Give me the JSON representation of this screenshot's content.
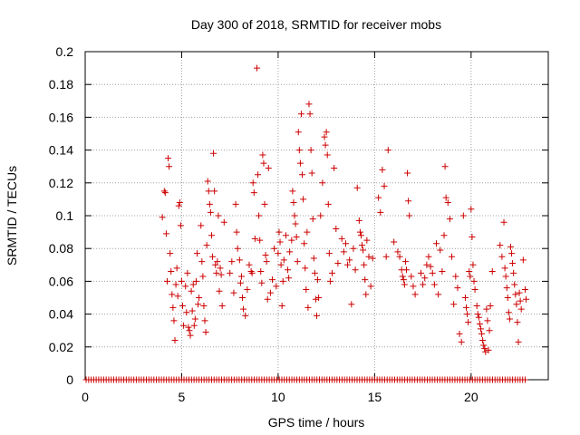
{
  "chart_data": {
    "type": "scatter",
    "title": "Day 300 of 2018, SRMTID for receiver mobs",
    "xlabel": "GPS time / hours",
    "ylabel": "SRMTID / TECUs",
    "xlim": [
      0,
      24
    ],
    "ylim": [
      0,
      0.2
    ],
    "xticks": [
      0,
      5,
      10,
      15,
      20
    ],
    "xtick_labels": [
      "0",
      "5",
      "10",
      "15",
      "20"
    ],
    "yticks": [
      0,
      0.02,
      0.04,
      0.06,
      0.08,
      0.1,
      0.12,
      0.14,
      0.16,
      0.18,
      0.2
    ],
    "ytick_labels": [
      "0",
      "0.02",
      "0.04",
      "0.06",
      "0.08",
      "0.1",
      "0.12",
      "0.14",
      "0.16",
      "0.18",
      "0.2"
    ],
    "grid": true,
    "marker": "+",
    "color": "#cc0000",
    "series": [
      {
        "name": "SRMTID",
        "points": [
          [
            4.0,
            0.099
          ],
          [
            4.1,
            0.115
          ],
          [
            4.15,
            0.114
          ],
          [
            4.2,
            0.089
          ],
          [
            4.25,
            0.06
          ],
          [
            4.3,
            0.135
          ],
          [
            4.35,
            0.13
          ],
          [
            4.4,
            0.077
          ],
          [
            4.45,
            0.066
          ],
          [
            4.5,
            0.052
          ],
          [
            4.55,
            0.044
          ],
          [
            4.6,
            0.036
          ],
          [
            4.65,
            0.024
          ],
          [
            4.7,
            0.058
          ],
          [
            4.75,
            0.068
          ],
          [
            4.8,
            0.051
          ],
          [
            4.85,
            0.106
          ],
          [
            4.9,
            0.108
          ],
          [
            4.95,
            0.094
          ],
          [
            5.0,
            0.06
          ],
          [
            5.05,
            0.045
          ],
          [
            5.1,
            0.033
          ],
          [
            5.2,
            0.057
          ],
          [
            5.25,
            0.041
          ],
          [
            5.3,
            0.065
          ],
          [
            5.35,
            0.032
          ],
          [
            5.4,
            0.03
          ],
          [
            5.45,
            0.027
          ],
          [
            5.5,
            0.054
          ],
          [
            5.55,
            0.042
          ],
          [
            5.6,
            0.058
          ],
          [
            5.65,
            0.033
          ],
          [
            5.7,
            0.037
          ],
          [
            5.75,
            0.06
          ],
          [
            5.8,
            0.077
          ],
          [
            5.85,
            0.046
          ],
          [
            5.9,
            0.05
          ],
          [
            6.0,
            0.094
          ],
          [
            6.05,
            0.072
          ],
          [
            6.1,
            0.063
          ],
          [
            6.15,
            0.045
          ],
          [
            6.2,
            0.036
          ],
          [
            6.25,
            0.029
          ],
          [
            6.3,
            0.082
          ],
          [
            6.35,
            0.121
          ],
          [
            6.4,
            0.115
          ],
          [
            6.45,
            0.107
          ],
          [
            6.5,
            0.102
          ],
          [
            6.55,
            0.088
          ],
          [
            6.6,
            0.075
          ],
          [
            6.65,
            0.138
          ],
          [
            6.7,
            0.115
          ],
          [
            6.75,
            0.07
          ],
          [
            6.8,
            0.065
          ],
          [
            6.85,
            0.072
          ],
          [
            6.9,
            0.1
          ],
          [
            6.95,
            0.054
          ],
          [
            7.0,
            0.068
          ],
          [
            7.05,
            0.064
          ],
          [
            7.1,
            0.045
          ],
          [
            7.2,
            0.096
          ],
          [
            7.5,
            0.065
          ],
          [
            7.6,
            0.072
          ],
          [
            7.7,
            0.053
          ],
          [
            7.8,
            0.107
          ],
          [
            7.85,
            0.09
          ],
          [
            7.9,
            0.08
          ],
          [
            8.0,
            0.073
          ],
          [
            8.05,
            0.059
          ],
          [
            8.1,
            0.063
          ],
          [
            8.15,
            0.05
          ],
          [
            8.2,
            0.043
          ],
          [
            8.3,
            0.039
          ],
          [
            8.4,
            0.055
          ],
          [
            8.5,
            0.07
          ],
          [
            8.6,
            0.066
          ],
          [
            8.65,
            0.065
          ],
          [
            8.7,
            0.12
          ],
          [
            8.75,
            0.114
          ],
          [
            8.8,
            0.086
          ],
          [
            8.9,
            0.19
          ],
          [
            8.95,
            0.125
          ],
          [
            9.0,
            0.1
          ],
          [
            9.05,
            0.085
          ],
          [
            9.1,
            0.066
          ],
          [
            9.15,
            0.059
          ],
          [
            9.2,
            0.137
          ],
          [
            9.25,
            0.132
          ],
          [
            9.3,
            0.107
          ],
          [
            9.35,
            0.076
          ],
          [
            9.4,
            0.072
          ],
          [
            9.45,
            0.049
          ],
          [
            9.5,
            0.129
          ],
          [
            9.6,
            0.053
          ],
          [
            9.7,
            0.061
          ],
          [
            9.8,
            0.08
          ],
          [
            9.9,
            0.057
          ],
          [
            10.0,
            0.077
          ],
          [
            10.05,
            0.09
          ],
          [
            10.1,
            0.084
          ],
          [
            10.15,
            0.07
          ],
          [
            10.2,
            0.045
          ],
          [
            10.25,
            0.06
          ],
          [
            10.3,
            0.073
          ],
          [
            10.4,
            0.088
          ],
          [
            10.5,
            0.067
          ],
          [
            10.55,
            0.062
          ],
          [
            10.6,
            0.078
          ],
          [
            10.7,
            0.085
          ],
          [
            10.75,
            0.115
          ],
          [
            10.8,
            0.108
          ],
          [
            10.85,
            0.1
          ],
          [
            10.9,
            0.095
          ],
          [
            10.95,
            0.087
          ],
          [
            11.0,
            0.072
          ],
          [
            11.05,
            0.151
          ],
          [
            11.1,
            0.14
          ],
          [
            11.15,
            0.132
          ],
          [
            11.2,
            0.162
          ],
          [
            11.25,
            0.125
          ],
          [
            11.3,
            0.11
          ],
          [
            11.35,
            0.083
          ],
          [
            11.4,
            0.068
          ],
          [
            11.45,
            0.055
          ],
          [
            11.5,
            0.09
          ],
          [
            11.55,
            0.044
          ],
          [
            11.6,
            0.168
          ],
          [
            11.65,
            0.162
          ],
          [
            11.7,
            0.14
          ],
          [
            11.75,
            0.126
          ],
          [
            11.8,
            0.098
          ],
          [
            11.85,
            0.074
          ],
          [
            11.9,
            0.065
          ],
          [
            11.95,
            0.049
          ],
          [
            12.0,
            0.039
          ],
          [
            12.05,
            0.061
          ],
          [
            12.1,
            0.05
          ],
          [
            12.2,
            0.1
          ],
          [
            12.3,
            0.12
          ],
          [
            12.4,
            0.148
          ],
          [
            12.45,
            0.143
          ],
          [
            12.5,
            0.151
          ],
          [
            12.55,
            0.137
          ],
          [
            12.6,
            0.107
          ],
          [
            12.65,
            0.077
          ],
          [
            12.7,
            0.06
          ],
          [
            12.8,
            0.065
          ],
          [
            12.9,
            0.129
          ],
          [
            13.0,
            0.092
          ],
          [
            13.1,
            0.071
          ],
          [
            13.3,
            0.086
          ],
          [
            13.4,
            0.078
          ],
          [
            13.5,
            0.083
          ],
          [
            13.6,
            0.07
          ],
          [
            13.7,
            0.073
          ],
          [
            13.8,
            0.046
          ],
          [
            13.9,
            0.08
          ],
          [
            14.0,
            0.067
          ],
          [
            14.1,
            0.117
          ],
          [
            14.2,
            0.097
          ],
          [
            14.25,
            0.09
          ],
          [
            14.3,
            0.088
          ],
          [
            14.35,
            0.082
          ],
          [
            14.4,
            0.079
          ],
          [
            14.45,
            0.07
          ],
          [
            14.5,
            0.061
          ],
          [
            14.55,
            0.052
          ],
          [
            14.6,
            0.085
          ],
          [
            14.7,
            0.075
          ],
          [
            14.8,
            0.057
          ],
          [
            14.9,
            0.074
          ],
          [
            15.2,
            0.111
          ],
          [
            15.3,
            0.102
          ],
          [
            15.4,
            0.128
          ],
          [
            15.5,
            0.118
          ],
          [
            15.6,
            0.075
          ],
          [
            15.7,
            0.14
          ],
          [
            16.0,
            0.084
          ],
          [
            16.2,
            0.078
          ],
          [
            16.3,
            0.075
          ],
          [
            16.4,
            0.067
          ],
          [
            16.45,
            0.063
          ],
          [
            16.5,
            0.061
          ],
          [
            16.55,
            0.058
          ],
          [
            16.6,
            0.072
          ],
          [
            16.65,
            0.067
          ],
          [
            16.7,
            0.126
          ],
          [
            16.75,
            0.109
          ],
          [
            16.8,
            0.1
          ],
          [
            16.9,
            0.063
          ],
          [
            17.0,
            0.057
          ],
          [
            17.1,
            0.052
          ],
          [
            17.4,
            0.065
          ],
          [
            17.5,
            0.058
          ],
          [
            17.6,
            0.062
          ],
          [
            17.7,
            0.07
          ],
          [
            17.8,
            0.075
          ],
          [
            17.9,
            0.069
          ],
          [
            18.0,
            0.065
          ],
          [
            18.1,
            0.058
          ],
          [
            18.2,
            0.083
          ],
          [
            18.3,
            0.052
          ],
          [
            18.4,
            0.079
          ],
          [
            18.5,
            0.066
          ],
          [
            18.6,
            0.088
          ],
          [
            18.65,
            0.13
          ],
          [
            18.7,
            0.111
          ],
          [
            18.8,
            0.108
          ],
          [
            18.9,
            0.098
          ],
          [
            19.0,
            0.075
          ],
          [
            19.1,
            0.046
          ],
          [
            19.2,
            0.063
          ],
          [
            19.3,
            0.056
          ],
          [
            19.4,
            0.028
          ],
          [
            19.5,
            0.023
          ],
          [
            19.6,
            0.1
          ],
          [
            19.7,
            0.05
          ],
          [
            19.75,
            0.044
          ],
          [
            19.8,
            0.04
          ],
          [
            19.85,
            0.035
          ],
          [
            19.9,
            0.066
          ],
          [
            19.95,
            0.063
          ],
          [
            20.0,
            0.104
          ],
          [
            20.05,
            0.087
          ],
          [
            20.1,
            0.07
          ],
          [
            20.15,
            0.06
          ],
          [
            20.2,
            0.055
          ],
          [
            20.3,
            0.045
          ],
          [
            20.35,
            0.04
          ],
          [
            20.4,
            0.038
          ],
          [
            20.45,
            0.034
          ],
          [
            20.5,
            0.031
          ],
          [
            20.55,
            0.028
          ],
          [
            20.6,
            0.024
          ],
          [
            20.65,
            0.021
          ],
          [
            20.7,
            0.019
          ],
          [
            20.75,
            0.017
          ],
          [
            20.8,
            0.043
          ],
          [
            20.85,
            0.036
          ],
          [
            20.9,
            0.018
          ],
          [
            20.95,
            0.03
          ],
          [
            21.0,
            0.045
          ],
          [
            21.1,
            0.066
          ],
          [
            21.5,
            0.082
          ],
          [
            21.6,
            0.075
          ],
          [
            21.7,
            0.096
          ],
          [
            21.75,
            0.068
          ],
          [
            21.8,
            0.063
          ],
          [
            21.85,
            0.056
          ],
          [
            21.9,
            0.05
          ],
          [
            21.95,
            0.041
          ],
          [
            22.0,
            0.037
          ],
          [
            22.05,
            0.081
          ],
          [
            22.1,
            0.077
          ],
          [
            22.15,
            0.071
          ],
          [
            22.2,
            0.065
          ],
          [
            22.25,
            0.058
          ],
          [
            22.3,
            0.052
          ],
          [
            22.35,
            0.046
          ],
          [
            22.4,
            0.035
          ],
          [
            22.45,
            0.023
          ],
          [
            22.5,
            0.053
          ],
          [
            22.55,
            0.048
          ],
          [
            22.6,
            0.043
          ],
          [
            22.7,
            0.073
          ],
          [
            22.8,
            0.055
          ],
          [
            22.85,
            0.049
          ]
        ]
      }
    ],
    "zero_row": {
      "y": 0,
      "x_start": 0.05,
      "x_end": 22.9,
      "x_step": 0.13
    }
  }
}
